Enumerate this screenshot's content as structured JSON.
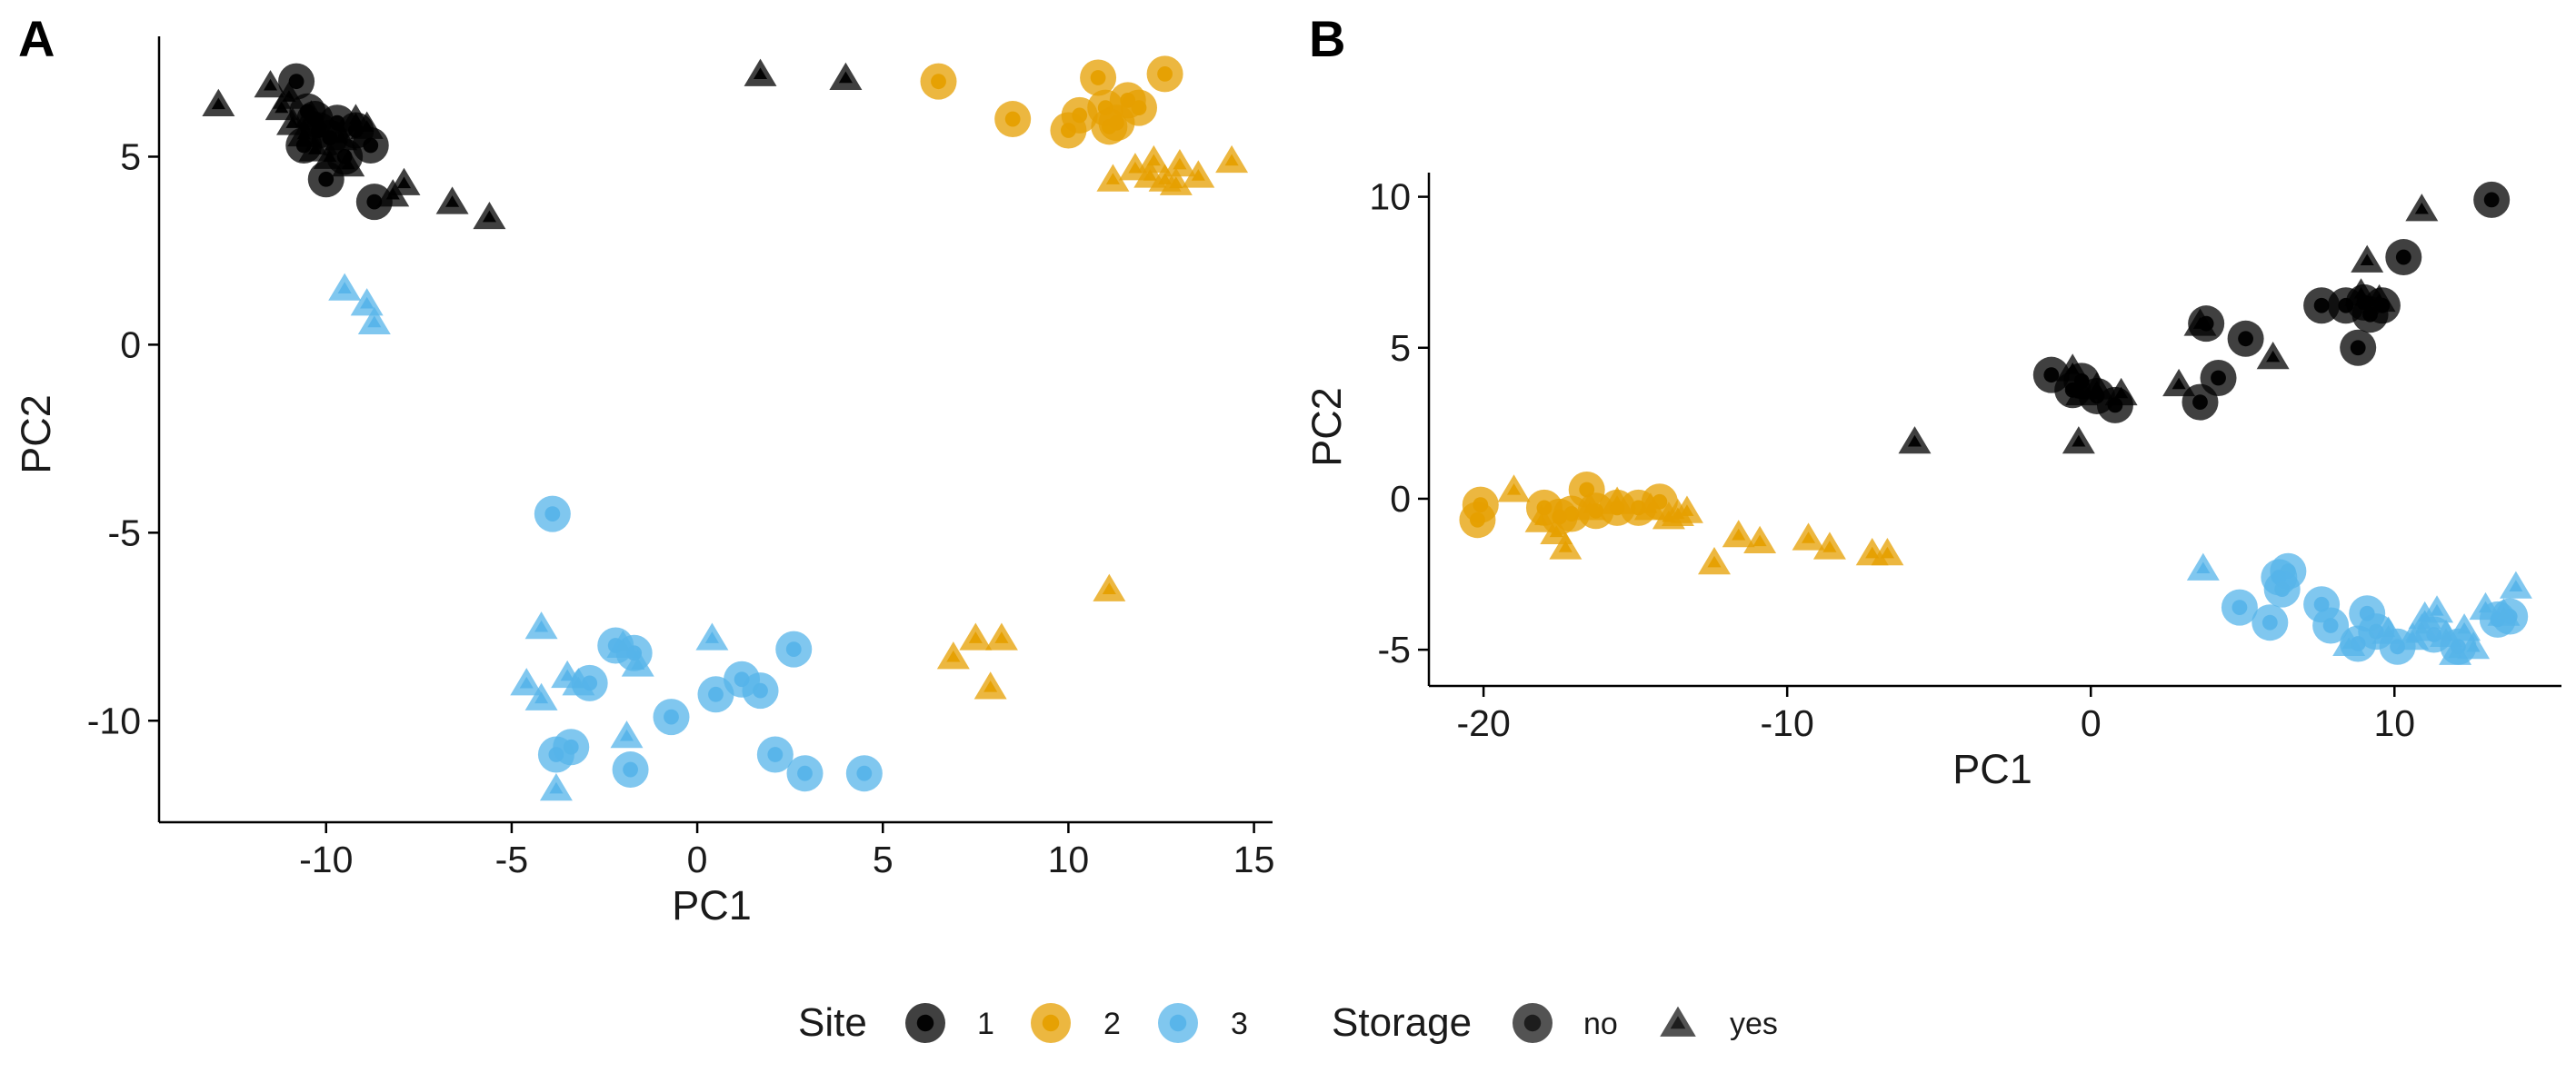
{
  "colors": {
    "site_1": "#000000",
    "site_2": "#E69F00",
    "site_3": "#56B4E9"
  },
  "chart_data": [
    {
      "type": "scatter",
      "panel_label": "A",
      "xlabel": "PC1",
      "ylabel": "PC2",
      "xlim": [
        -14.5,
        15.5
      ],
      "ylim": [
        -12.7,
        8.2
      ],
      "x_ticks": [
        -10,
        -5,
        0,
        5,
        10,
        15
      ],
      "y_ticks": [
        -10,
        -5,
        0,
        5
      ],
      "x_tick_labels": [
        "-10",
        "-5",
        "0",
        "5",
        "10",
        "15"
      ],
      "y_tick_labels": [
        "-10",
        "-5",
        "0",
        "5"
      ],
      "grid": false,
      "series": [
        {
          "site": "1",
          "storage": "no",
          "points": [
            [
              -10.8,
              7.0
            ],
            [
              -10.5,
              6.2
            ],
            [
              -10.2,
              5.7
            ],
            [
              -9.9,
              5.5
            ],
            [
              -9.5,
              5.0
            ],
            [
              -9.2,
              5.7
            ],
            [
              -10.6,
              5.3
            ],
            [
              -10.0,
              4.4
            ],
            [
              -8.8,
              5.3
            ],
            [
              -8.7,
              3.8
            ],
            [
              -10.3,
              6.0
            ],
            [
              -9.7,
              5.9
            ]
          ]
        },
        {
          "site": "1",
          "storage": "yes",
          "points": [
            [
              -12.9,
              6.4
            ],
            [
              -11.5,
              6.9
            ],
            [
              -11.2,
              6.3
            ],
            [
              -10.9,
              5.9
            ],
            [
              -10.6,
              5.6
            ],
            [
              -10.3,
              5.2
            ],
            [
              -9.9,
              5.0
            ],
            [
              -9.6,
              5.5
            ],
            [
              -9.2,
              6.0
            ],
            [
              -8.9,
              5.8
            ],
            [
              -9.4,
              4.8
            ],
            [
              -7.9,
              4.3
            ],
            [
              -8.2,
              4.0
            ],
            [
              -6.6,
              3.8
            ],
            [
              -5.6,
              3.4
            ],
            [
              1.7,
              7.2
            ],
            [
              4.0,
              7.1
            ],
            [
              -11.0,
              6.6
            ],
            [
              -10.4,
              6.1
            ]
          ]
        },
        {
          "site": "2",
          "storage": "no",
          "points": [
            [
              6.5,
              7.0
            ],
            [
              8.5,
              6.0
            ],
            [
              10.0,
              5.7
            ],
            [
              10.3,
              6.1
            ],
            [
              10.8,
              7.1
            ],
            [
              11.0,
              6.3
            ],
            [
              11.3,
              5.9
            ],
            [
              11.6,
              6.5
            ],
            [
              11.9,
              6.3
            ],
            [
              12.6,
              7.2
            ],
            [
              11.1,
              5.8
            ]
          ]
        },
        {
          "site": "2",
          "storage": "yes",
          "points": [
            [
              11.2,
              4.4
            ],
            [
              11.8,
              4.7
            ],
            [
              12.2,
              4.5
            ],
            [
              12.6,
              4.4
            ],
            [
              13.0,
              4.8
            ],
            [
              13.5,
              4.5
            ],
            [
              14.4,
              4.9
            ],
            [
              12.9,
              4.3
            ],
            [
              11.1,
              -6.5
            ],
            [
              6.9,
              -8.3
            ],
            [
              7.5,
              -7.8
            ],
            [
              7.9,
              -9.1
            ],
            [
              8.2,
              -7.8
            ],
            [
              12.3,
              4.9
            ]
          ]
        },
        {
          "site": "3",
          "storage": "no",
          "points": [
            [
              -3.9,
              -4.5
            ],
            [
              -3.8,
              -10.9
            ],
            [
              -3.4,
              -10.7
            ],
            [
              -2.9,
              -9.0
            ],
            [
              -2.2,
              -8.0
            ],
            [
              -1.8,
              -11.3
            ],
            [
              -1.7,
              -8.2
            ],
            [
              -0.7,
              -9.9
            ],
            [
              0.5,
              -9.3
            ],
            [
              1.2,
              -8.9
            ],
            [
              1.7,
              -9.2
            ],
            [
              2.1,
              -10.9
            ],
            [
              2.6,
              -8.1
            ],
            [
              2.9,
              -11.4
            ],
            [
              4.5,
              -11.4
            ]
          ]
        },
        {
          "site": "3",
          "storage": "yes",
          "points": [
            [
              -9.5,
              1.5
            ],
            [
              -8.9,
              1.1
            ],
            [
              -8.7,
              0.6
            ],
            [
              -4.2,
              -7.5
            ],
            [
              -4.6,
              -9.0
            ],
            [
              -4.2,
              -9.4
            ],
            [
              -3.5,
              -8.8
            ],
            [
              -3.2,
              -9.0
            ],
            [
              -2.0,
              -8.0
            ],
            [
              -1.6,
              -8.5
            ],
            [
              -1.9,
              -10.4
            ],
            [
              0.4,
              -7.8
            ],
            [
              -3.8,
              -11.8
            ]
          ]
        }
      ]
    },
    {
      "type": "scatter",
      "panel_label": "B",
      "xlabel": "PC1",
      "ylabel": "PC2",
      "xlim": [
        -21.8,
        15.5
      ],
      "ylim": [
        -6.2,
        10.8
      ],
      "x_ticks": [
        -20,
        -10,
        0,
        10
      ],
      "y_ticks": [
        -5,
        0,
        5,
        10
      ],
      "x_tick_labels": [
        "-20",
        "-10",
        "0",
        "10"
      ],
      "y_tick_labels": [
        "-5",
        "0",
        "5",
        "10"
      ],
      "grid": false,
      "series": [
        {
          "site": "1",
          "storage": "no",
          "points": [
            [
              -1.3,
              4.1
            ],
            [
              -0.6,
              3.6
            ],
            [
              -0.3,
              3.9
            ],
            [
              0.2,
              3.4
            ],
            [
              0.8,
              3.1
            ],
            [
              3.6,
              3.2
            ],
            [
              3.8,
              5.8
            ],
            [
              4.2,
              4.0
            ],
            [
              5.1,
              5.3
            ],
            [
              7.6,
              6.4
            ],
            [
              8.4,
              6.4
            ],
            [
              8.8,
              5.0
            ],
            [
              9.0,
              6.5
            ],
            [
              9.6,
              6.4
            ],
            [
              10.3,
              8.0
            ],
            [
              13.2,
              9.9
            ],
            [
              9.2,
              6.1
            ]
          ]
        },
        {
          "site": "1",
          "storage": "yes",
          "points": [
            [
              -5.8,
              1.9
            ],
            [
              -0.6,
              4.3
            ],
            [
              -0.3,
              3.5
            ],
            [
              -0.4,
              1.9
            ],
            [
              0.2,
              3.7
            ],
            [
              1.0,
              3.5
            ],
            [
              2.9,
              3.8
            ],
            [
              3.6,
              5.8
            ],
            [
              6.0,
              4.7
            ],
            [
              8.9,
              6.8
            ],
            [
              9.1,
              7.9
            ],
            [
              9.5,
              6.6
            ],
            [
              10.9,
              9.6
            ]
          ]
        },
        {
          "site": "2",
          "storage": "no",
          "points": [
            [
              -20.1,
              -0.2
            ],
            [
              -20.2,
              -0.7
            ],
            [
              -18.0,
              -0.3
            ],
            [
              -17.5,
              -0.6
            ],
            [
              -16.6,
              0.3
            ],
            [
              -16.3,
              -0.4
            ],
            [
              -15.6,
              -0.3
            ],
            [
              -14.9,
              -0.3
            ],
            [
              -14.2,
              -0.1
            ],
            [
              -17.1,
              -0.5
            ]
          ]
        },
        {
          "site": "2",
          "storage": "yes",
          "points": [
            [
              -19.0,
              0.3
            ],
            [
              -18.1,
              -0.7
            ],
            [
              -17.6,
              -1.1
            ],
            [
              -17.3,
              -1.6
            ],
            [
              -16.5,
              -0.3
            ],
            [
              -15.6,
              -0.1
            ],
            [
              -14.5,
              -0.3
            ],
            [
              -13.9,
              -0.6
            ],
            [
              -13.6,
              -0.5
            ],
            [
              -12.4,
              -2.1
            ],
            [
              -11.6,
              -1.2
            ],
            [
              -10.9,
              -1.4
            ],
            [
              -9.3,
              -1.3
            ],
            [
              -8.6,
              -1.6
            ],
            [
              -7.2,
              -1.8
            ],
            [
              -6.7,
              -1.8
            ],
            [
              -13.3,
              -0.4
            ]
          ]
        },
        {
          "site": "3",
          "storage": "no",
          "points": [
            [
              4.9,
              -3.6
            ],
            [
              5.9,
              -4.1
            ],
            [
              6.2,
              -2.6
            ],
            [
              6.5,
              -2.4
            ],
            [
              7.6,
              -3.5
            ],
            [
              7.9,
              -4.2
            ],
            [
              8.8,
              -4.8
            ],
            [
              9.1,
              -3.8
            ],
            [
              9.4,
              -4.4
            ],
            [
              10.1,
              -4.9
            ],
            [
              11.3,
              -4.5
            ],
            [
              12.1,
              -4.9
            ],
            [
              13.4,
              -4.0
            ],
            [
              13.8,
              -3.9
            ],
            [
              6.3,
              -3.0
            ]
          ]
        },
        {
          "site": "3",
          "storage": "yes",
          "points": [
            [
              3.7,
              -2.3
            ],
            [
              8.5,
              -4.8
            ],
            [
              9.8,
              -4.4
            ],
            [
              10.6,
              -4.6
            ],
            [
              11.0,
              -3.9
            ],
            [
              11.4,
              -3.7
            ],
            [
              11.7,
              -4.5
            ],
            [
              12.0,
              -5.1
            ],
            [
              12.3,
              -4.3
            ],
            [
              12.6,
              -4.9
            ],
            [
              13.0,
              -3.6
            ],
            [
              13.6,
              -3.8
            ],
            [
              14.0,
              -2.9
            ],
            [
              10.9,
              -4.3
            ]
          ]
        }
      ]
    }
  ],
  "legend": {
    "placement": "bottom",
    "site_title": "Site",
    "site_items": [
      {
        "label": "1",
        "color_key": "site_1"
      },
      {
        "label": "2",
        "color_key": "site_2"
      },
      {
        "label": "3",
        "color_key": "site_3"
      }
    ],
    "storage_title": "Storage",
    "storage_items": [
      {
        "label": "no",
        "shape": "circle"
      },
      {
        "label": "yes",
        "shape": "triangle"
      }
    ]
  }
}
